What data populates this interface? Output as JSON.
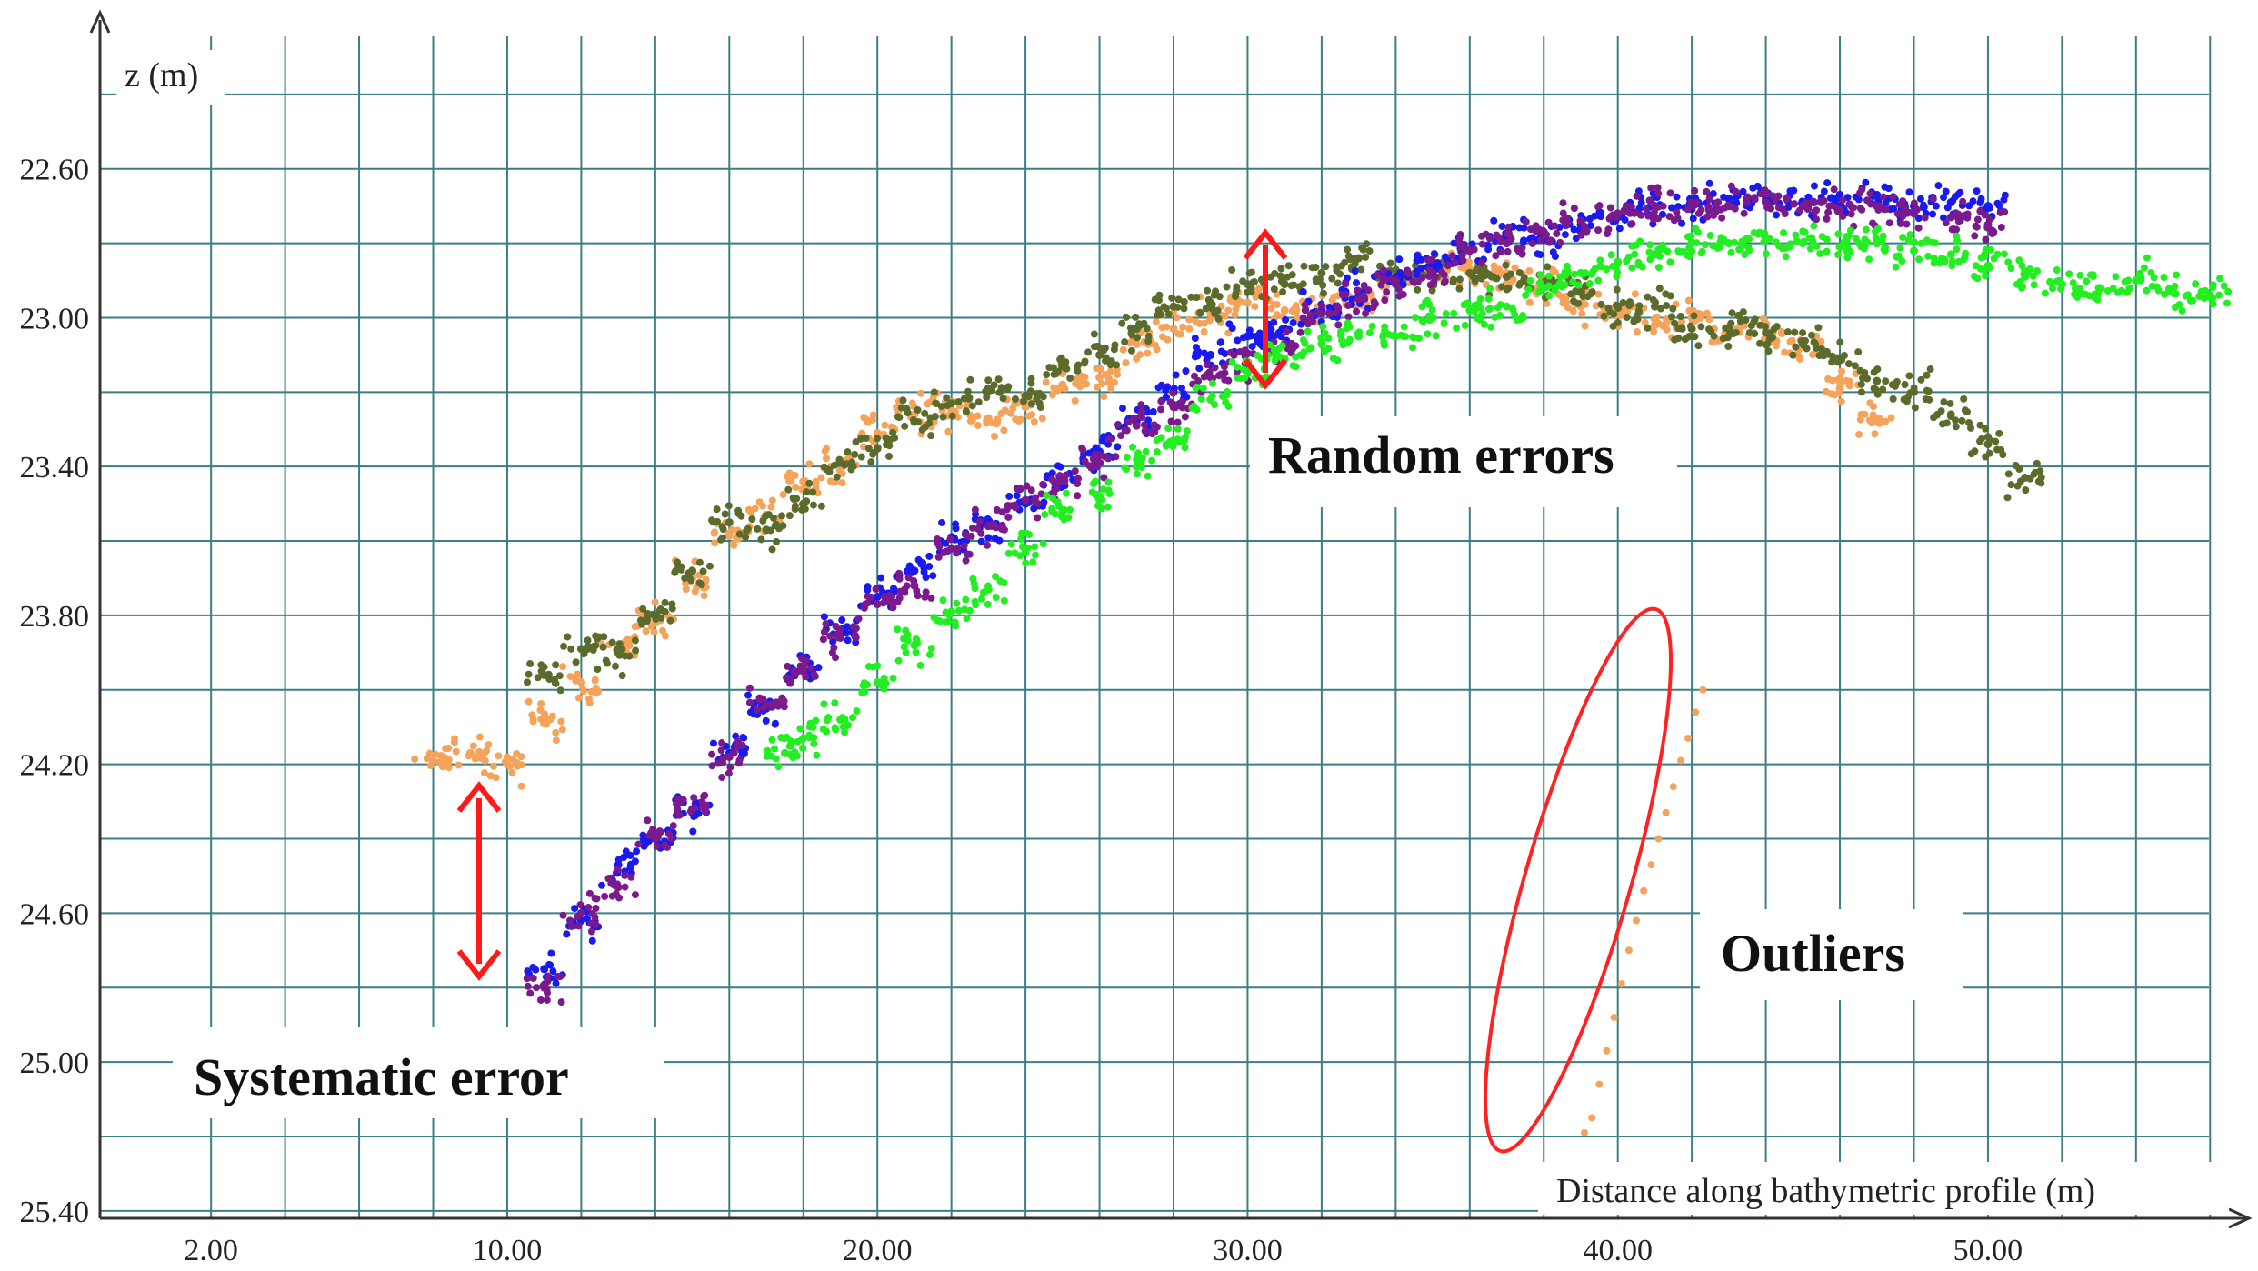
{
  "chart_data": {
    "type": "scatter",
    "title": "",
    "xlabel": "Distance along bathymetric profile (m)",
    "ylabel": "z (m)",
    "xlim": [
      -1.0,
      57.0
    ],
    "ylim": [
      25.42,
      22.2
    ],
    "y_inverted": true,
    "x_ticks": [
      2,
      10,
      20,
      30,
      40,
      50
    ],
    "x_tick_labels": [
      "2.00",
      "10.00",
      "20.00",
      "30.00",
      "40.00",
      "50.00"
    ],
    "y_ticks": [
      22.6,
      23.0,
      23.4,
      23.8,
      24.2,
      24.6,
      25.0,
      25.4
    ],
    "y_tick_labels": [
      "22.60",
      "23.00",
      "23.40",
      "23.80",
      "24.20",
      "24.60",
      "25.00",
      "25.40"
    ],
    "x_grid": [
      2,
      4,
      6,
      8,
      10,
      12,
      14,
      16,
      18,
      20,
      22,
      24,
      26,
      28,
      30,
      32,
      34,
      36,
      38,
      40,
      42,
      44,
      46,
      48,
      50,
      52,
      54,
      56
    ],
    "y_grid": [
      22.4,
      22.6,
      22.8,
      23.0,
      23.2,
      23.4,
      23.6,
      23.8,
      24.0,
      24.2,
      24.4,
      24.6,
      24.8,
      25.0,
      25.2,
      25.4
    ],
    "grid": true,
    "legend": "none",
    "series": [
      {
        "color": "#f5a35a",
        "points": [
          [
            8.0,
            24.19
          ],
          [
            9.0,
            24.17
          ],
          [
            10.0,
            24.2
          ],
          [
            11.0,
            24.09
          ],
          [
            12.0,
            23.98
          ],
          [
            13.0,
            23.88
          ],
          [
            14.0,
            23.82
          ],
          [
            15.0,
            23.7
          ],
          [
            16.0,
            23.58
          ],
          [
            17.0,
            23.53
          ],
          [
            18.0,
            23.44
          ],
          [
            19.0,
            23.39
          ],
          [
            20.0,
            23.31
          ],
          [
            21.0,
            23.26
          ],
          [
            22.0,
            23.25
          ],
          [
            23.0,
            23.27
          ],
          [
            24.0,
            23.24
          ],
          [
            25.0,
            23.18
          ],
          [
            26.0,
            23.16
          ],
          [
            27.0,
            23.07
          ],
          [
            28.0,
            23.03
          ],
          [
            29.0,
            22.99
          ],
          [
            30.0,
            22.96
          ],
          [
            31.0,
            22.98
          ],
          [
            32.0,
            22.97
          ],
          [
            33.0,
            22.94
          ],
          [
            34.0,
            22.89
          ],
          [
            35.0,
            22.87
          ],
          [
            36.0,
            22.87
          ],
          [
            37.0,
            22.88
          ],
          [
            38.0,
            22.92
          ],
          [
            39.0,
            22.97
          ],
          [
            40.0,
            22.98
          ],
          [
            41.0,
            23.02
          ],
          [
            42.0,
            23.0
          ],
          [
            43.0,
            23.04
          ],
          [
            44.0,
            23.03
          ],
          [
            45.0,
            23.07
          ],
          [
            46.0,
            23.19
          ],
          [
            47.0,
            23.28
          ]
        ]
      },
      {
        "color": "#5a6b2c",
        "points": [
          [
            11.0,
            23.96
          ],
          [
            12.0,
            23.89
          ],
          [
            13.0,
            23.9
          ],
          [
            14.0,
            23.8
          ],
          [
            15.0,
            23.68
          ],
          [
            16.0,
            23.55
          ],
          [
            17.0,
            23.57
          ],
          [
            18.0,
            23.5
          ],
          [
            19.0,
            23.39
          ],
          [
            20.0,
            23.35
          ],
          [
            21.0,
            23.28
          ],
          [
            22.0,
            23.23
          ],
          [
            23.0,
            23.19
          ],
          [
            24.0,
            23.21
          ],
          [
            25.0,
            23.13
          ],
          [
            26.0,
            23.1
          ],
          [
            27.0,
            23.03
          ],
          [
            28.0,
            22.97
          ],
          [
            29.0,
            22.96
          ],
          [
            30.0,
            22.91
          ],
          [
            31.0,
            22.91
          ],
          [
            32.0,
            22.88
          ],
          [
            33.0,
            22.84
          ],
          [
            34.0,
            22.89
          ],
          [
            35.0,
            22.88
          ],
          [
            36.0,
            22.88
          ],
          [
            37.0,
            22.89
          ],
          [
            38.0,
            22.91
          ],
          [
            39.0,
            22.93
          ],
          [
            40.0,
            22.97
          ],
          [
            41.0,
            22.97
          ],
          [
            42.0,
            23.03
          ],
          [
            43.0,
            23.03
          ],
          [
            44.0,
            23.04
          ],
          [
            45.0,
            23.07
          ],
          [
            46.0,
            23.11
          ],
          [
            47.0,
            23.17
          ],
          [
            48.0,
            23.2
          ],
          [
            49.0,
            23.26
          ],
          [
            50.0,
            23.34
          ],
          [
            51.0,
            23.43
          ]
        ]
      },
      {
        "color": "#1a1aee",
        "points": [
          [
            11.0,
            24.75
          ],
          [
            12.0,
            24.62
          ],
          [
            13.0,
            24.47
          ],
          [
            14.0,
            24.4
          ],
          [
            15.0,
            24.33
          ],
          [
            16.0,
            24.17
          ],
          [
            17.0,
            24.05
          ],
          [
            18.0,
            23.95
          ],
          [
            19.0,
            23.84
          ],
          [
            20.0,
            23.75
          ],
          [
            21.0,
            23.68
          ],
          [
            22.0,
            23.59
          ],
          [
            23.0,
            23.56
          ],
          [
            24.0,
            23.5
          ],
          [
            25.0,
            23.43
          ],
          [
            26.0,
            23.36
          ],
          [
            27.0,
            23.28
          ],
          [
            28.0,
            23.2
          ],
          [
            29.0,
            23.1
          ],
          [
            30.0,
            23.05
          ],
          [
            31.0,
            23.03
          ],
          [
            32.0,
            22.98
          ],
          [
            33.0,
            22.93
          ],
          [
            34.0,
            22.89
          ],
          [
            35.0,
            22.86
          ],
          [
            36.0,
            22.82
          ],
          [
            37.0,
            22.78
          ],
          [
            38.0,
            22.79
          ],
          [
            39.0,
            22.75
          ],
          [
            40.0,
            22.73
          ],
          [
            41.0,
            22.7
          ],
          [
            42.0,
            22.7
          ],
          [
            43.0,
            22.68
          ],
          [
            44.0,
            22.68
          ],
          [
            45.0,
            22.69
          ],
          [
            46.0,
            22.67
          ],
          [
            47.0,
            22.67
          ],
          [
            48.0,
            22.7
          ],
          [
            49.0,
            22.69
          ],
          [
            50.0,
            22.7
          ]
        ]
      },
      {
        "color": "#7a1a8c",
        "points": [
          [
            11.0,
            24.8
          ],
          [
            12.0,
            24.6
          ],
          [
            13.0,
            24.53
          ],
          [
            14.0,
            24.4
          ],
          [
            15.0,
            24.32
          ],
          [
            16.0,
            24.18
          ],
          [
            17.0,
            24.04
          ],
          [
            18.0,
            23.95
          ],
          [
            19.0,
            23.86
          ],
          [
            20.0,
            23.77
          ],
          [
            21.0,
            23.72
          ],
          [
            22.0,
            23.62
          ],
          [
            23.0,
            23.56
          ],
          [
            24.0,
            23.49
          ],
          [
            25.0,
            23.44
          ],
          [
            26.0,
            23.37
          ],
          [
            27.0,
            23.29
          ],
          [
            28.0,
            23.24
          ],
          [
            29.0,
            23.16
          ],
          [
            30.0,
            23.12
          ],
          [
            31.0,
            23.07
          ],
          [
            32.0,
            22.99
          ],
          [
            33.0,
            22.95
          ],
          [
            34.0,
            22.91
          ],
          [
            35.0,
            22.88
          ],
          [
            36.0,
            22.82
          ],
          [
            37.0,
            22.8
          ],
          [
            38.0,
            22.77
          ],
          [
            39.0,
            22.74
          ],
          [
            40.0,
            22.72
          ],
          [
            41.0,
            22.7
          ],
          [
            42.0,
            22.69
          ],
          [
            43.0,
            22.7
          ],
          [
            44.0,
            22.69
          ],
          [
            45.0,
            22.7
          ],
          [
            46.0,
            22.71
          ],
          [
            47.0,
            22.7
          ],
          [
            48.0,
            22.72
          ],
          [
            49.0,
            22.73
          ],
          [
            50.0,
            22.75
          ]
        ]
      },
      {
        "color": "#22ee22",
        "points": [
          [
            17.5,
            24.17
          ],
          [
            18.0,
            24.13
          ],
          [
            19.0,
            24.08
          ],
          [
            20.0,
            23.98
          ],
          [
            21.0,
            23.88
          ],
          [
            22.0,
            23.79
          ],
          [
            23.0,
            23.73
          ],
          [
            24.0,
            23.63
          ],
          [
            25.0,
            23.52
          ],
          [
            26.0,
            23.48
          ],
          [
            27.0,
            23.4
          ],
          [
            28.0,
            23.33
          ],
          [
            29.0,
            23.22
          ],
          [
            30.0,
            23.15
          ],
          [
            31.0,
            23.11
          ],
          [
            32.0,
            23.07
          ],
          [
            33.0,
            23.05
          ],
          [
            34.0,
            23.05
          ],
          [
            35.0,
            23.0
          ],
          [
            36.0,
            22.98
          ],
          [
            37.0,
            22.97
          ],
          [
            38.0,
            22.92
          ],
          [
            39.0,
            22.88
          ],
          [
            40.0,
            22.85
          ],
          [
            41.0,
            22.83
          ],
          [
            42.0,
            22.8
          ],
          [
            43.0,
            22.8
          ],
          [
            44.0,
            22.79
          ],
          [
            45.0,
            22.8
          ],
          [
            46.0,
            22.81
          ],
          [
            47.0,
            22.8
          ],
          [
            48.0,
            22.82
          ],
          [
            49.0,
            22.83
          ],
          [
            50.0,
            22.86
          ],
          [
            51.0,
            22.89
          ],
          [
            52.0,
            22.91
          ],
          [
            53.0,
            22.92
          ],
          [
            54.0,
            22.9
          ],
          [
            55.0,
            22.93
          ],
          [
            56.0,
            22.94
          ]
        ]
      },
      {
        "color": "#f5a35a",
        "name": "",
        "points": [
          [
            39.1,
            25.19
          ],
          [
            39.3,
            25.15
          ],
          [
            39.5,
            25.06
          ],
          [
            39.7,
            24.97
          ],
          [
            39.9,
            24.88
          ],
          [
            40.1,
            24.79
          ],
          [
            40.3,
            24.7
          ],
          [
            40.5,
            24.62
          ],
          [
            40.7,
            24.54
          ],
          [
            40.9,
            24.47
          ],
          [
            41.1,
            24.4
          ],
          [
            41.3,
            24.33
          ],
          [
            41.5,
            24.26
          ],
          [
            41.7,
            24.19
          ],
          [
            41.9,
            24.13
          ],
          [
            42.1,
            24.06
          ],
          [
            42.3,
            24.0
          ]
        ]
      }
    ],
    "annotations": [
      {
        "text": "Random errors"
      },
      {
        "text": "Outliers"
      },
      {
        "text": "Systematic error"
      }
    ],
    "colors": {
      "annotation_arrow": "#ff1a1a",
      "outlier_ellipse": "#ff2222",
      "grid": "#3a7f84",
      "axis": "#333333"
    }
  }
}
